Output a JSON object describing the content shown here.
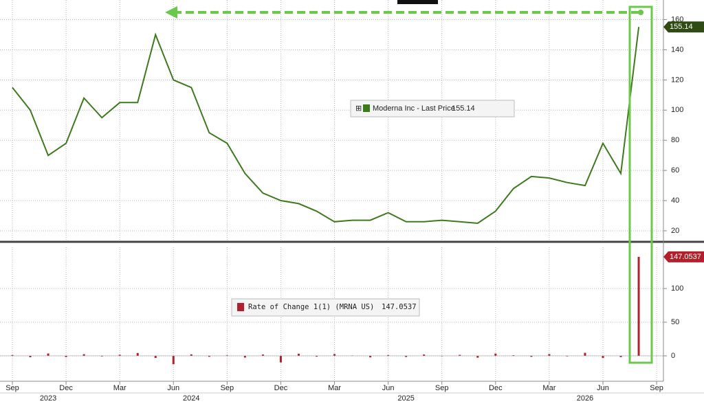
{
  "chart_data": [
    {
      "type": "line",
      "x": [
        "2023-09",
        "2023-10",
        "2023-11",
        "2023-12",
        "2024-01",
        "2024-02",
        "2024-03",
        "2024-04",
        "2024-05",
        "2024-06",
        "2024-07",
        "2024-08",
        "2024-09",
        "2024-10",
        "2024-11",
        "2024-12",
        "2025-01",
        "2025-02",
        "2025-03",
        "2025-04",
        "2025-05",
        "2025-06",
        "2025-07",
        "2025-08",
        "2025-09",
        "2025-10",
        "2025-11",
        "2025-12",
        "2026-01",
        "2026-02",
        "2026-03",
        "2026-04",
        "2026-05",
        "2026-06",
        "2026-07",
        "2026-08"
      ],
      "series": [
        {
          "name": "Moderna Inc - Last Price",
          "color": "#3d7a1c",
          "values": [
            115,
            100,
            70,
            78,
            108,
            95,
            105,
            105,
            150,
            120,
            115,
            85,
            78,
            58,
            45,
            40,
            38,
            33,
            26,
            27,
            27,
            32,
            26,
            26,
            27,
            26,
            25,
            33,
            48,
            56,
            55,
            52,
            50,
            78,
            58,
            155.14
          ]
        }
      ],
      "last_value": 155.14,
      "ylim": [
        13.6,
        173
      ],
      "yticks": [
        20,
        40,
        60,
        80,
        100,
        120,
        140,
        160
      ],
      "grid": true
    },
    {
      "type": "bar",
      "x": [
        "2023-09",
        "2023-10",
        "2023-11",
        "2023-12",
        "2024-01",
        "2024-02",
        "2024-03",
        "2024-04",
        "2024-05",
        "2024-06",
        "2024-07",
        "2024-08",
        "2024-09",
        "2024-10",
        "2024-11",
        "2024-12",
        "2025-01",
        "2025-02",
        "2025-03",
        "2025-04",
        "2025-05",
        "2025-06",
        "2025-07",
        "2025-08",
        "2025-09",
        "2025-10",
        "2025-11",
        "2025-12",
        "2026-01",
        "2026-02",
        "2026-03",
        "2026-04",
        "2026-05",
        "2026-06",
        "2026-07",
        "2026-08"
      ],
      "series": [
        {
          "name": "Rate of Change 1(1) (MRNA US)",
          "color": "#b3202c",
          "values": [
            1.2,
            -2.1,
            3.5,
            -1.8,
            2.4,
            -0.9,
            1.6,
            4.2,
            -3.1,
            -12.5,
            2.2,
            -1.4,
            0.8,
            -2.6,
            1.9,
            -9.8,
            3.1,
            -1.2,
            2.7,
            0.5,
            -2.3,
            1.1,
            -1.7,
            2.0,
            -0.6,
            1.4,
            -2.8,
            3.3,
            0.9,
            -1.5,
            2.6,
            -0.8,
            4.5,
            -3.2,
            -1.9,
            147.0537
          ]
        }
      ],
      "last_value": 147.0537,
      "ylim": [
        -37.8,
        161.2
      ],
      "yticks": [
        0,
        50,
        100
      ],
      "grid": true,
      "xticks": [
        {
          "value": "2023-09",
          "label": "Sep"
        },
        {
          "value": "2023-12",
          "label": "Dec"
        },
        {
          "value": "2024-03",
          "label": "Mar"
        },
        {
          "value": "2024-06",
          "label": "Jun"
        },
        {
          "value": "2024-09",
          "label": "Sep"
        },
        {
          "value": "2024-12",
          "label": "Dec"
        },
        {
          "value": "2025-03",
          "label": "Mar"
        },
        {
          "value": "2025-06",
          "label": "Jun"
        },
        {
          "value": "2025-09",
          "label": "Sep"
        },
        {
          "value": "2025-12",
          "label": "Dec"
        },
        {
          "value": "2026-03",
          "label": "Mar"
        },
        {
          "value": "2026-06",
          "label": "Jun"
        },
        {
          "value": "2026-09",
          "label": "Sep"
        }
      ],
      "years": [
        2023,
        2024,
        2025,
        2026
      ]
    }
  ]
}
